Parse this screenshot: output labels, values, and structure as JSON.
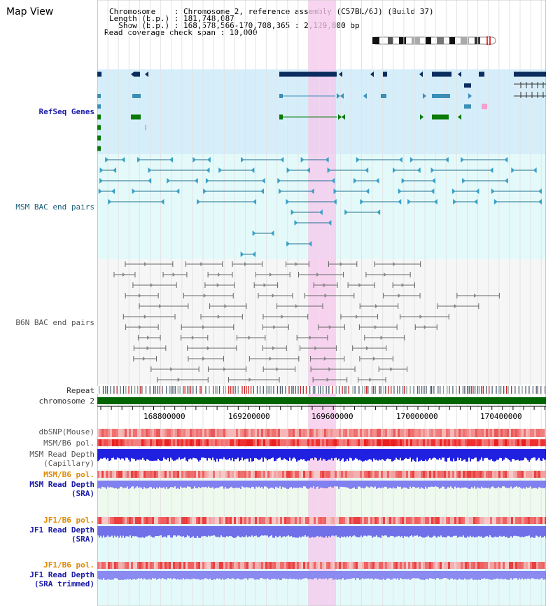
{
  "header": {
    "title": "Map View",
    "chromosome_line": "Chromosome    : Chromosome 2, reference assembly (C57BL/6J) (Build 37)",
    "length_line": "Length (b.p.) : 181,748,087",
    "show_line": "  Show (b.p.) : 168,578,566-170,708,365 : 2,129,800 bp",
    "coverage_line": "Read coverage check span : 10,000"
  },
  "tracks": {
    "refseq": "RefSeq Genes",
    "msm_bac": "MSM BAC end pairs",
    "b6n_bac": "B6N BAC end pairs",
    "repeat": "Repeat",
    "chromosome": "chromosome 2",
    "dbsnp": "dbSNP(Mouse)",
    "msm_b6_pol_1": "MSM/B6 pol.",
    "msm_read_depth_cap_1": "MSM Read Depth",
    "msm_read_depth_cap_2": "(Capillary)",
    "msm_b6_pol_2": "MSM/B6 pol.",
    "msm_read_depth_sra_1": "MSM Read Depth",
    "msm_read_depth_sra_2": "(SRA)",
    "jf1_b6_pol_1": "JF1/B6 pol.",
    "jf1_read_depth_sra_1": "JF1 Read Depth",
    "jf1_read_depth_sra_2": "(SRA)",
    "jf1_b6_pol_2": "JF1/B6 pol.",
    "jf1_read_depth_trim_1": "JF1 Read Depth",
    "jf1_read_depth_trim_2": "(SRA trimmed)"
  },
  "axis": {
    "ticks": [
      "168800000",
      "169200000",
      "169600000",
      "170000000",
      "170400000"
    ]
  },
  "colors": {
    "highlight": "#f7d2f0",
    "refseq_bg": "#d6eefa",
    "msm_bg": "#e4fafa",
    "b6n_bg": "#f6f6f6",
    "chromosome_bar": "#006400",
    "navy": "#0b2d5e",
    "teal": "#1f6e8c",
    "green": "#0a7a0a"
  }
}
